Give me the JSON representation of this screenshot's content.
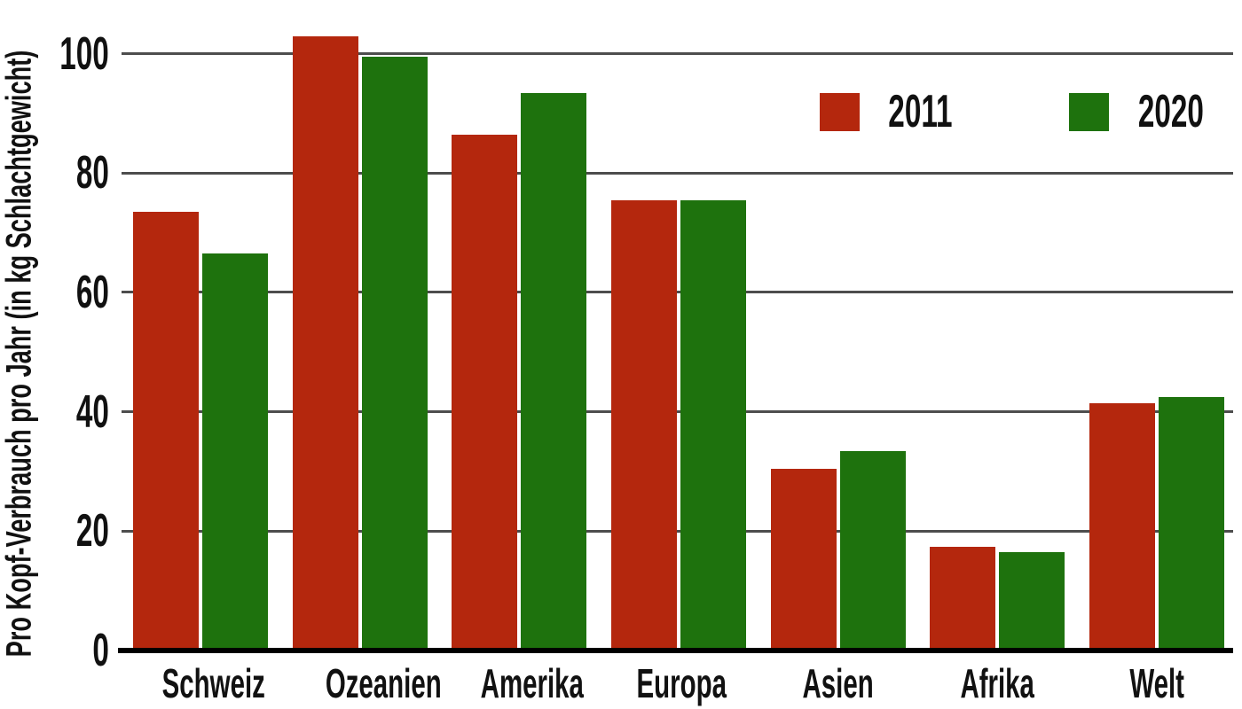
{
  "chart_data": {
    "type": "bar",
    "title": "",
    "xlabel": "",
    "ylabel": "Pro Kopf-Verbrauch pro Jahr (in kg Schlachtgewicht)",
    "categories": [
      "Schweiz",
      "Ozeanien",
      "Amerika",
      "Europa",
      "Asien",
      "Afrika",
      "Welt"
    ],
    "series": [
      {
        "name": "2011",
        "color": "#b4270d",
        "values": [
          73,
          102.5,
          86,
          75,
          30,
          17,
          41
        ]
      },
      {
        "name": "2020",
        "color": "#1e720d",
        "values": [
          66,
          99,
          93,
          75,
          33,
          16,
          42
        ]
      }
    ],
    "ylim": [
      0,
      108.6
    ],
    "yticks": [
      0,
      20,
      40,
      60,
      80,
      100
    ],
    "grid": true,
    "legend_position": "top-right"
  },
  "colors": {
    "grid": "#4d4d4d",
    "axis": "#000000",
    "background": "#ffffff",
    "text": "#111111"
  }
}
